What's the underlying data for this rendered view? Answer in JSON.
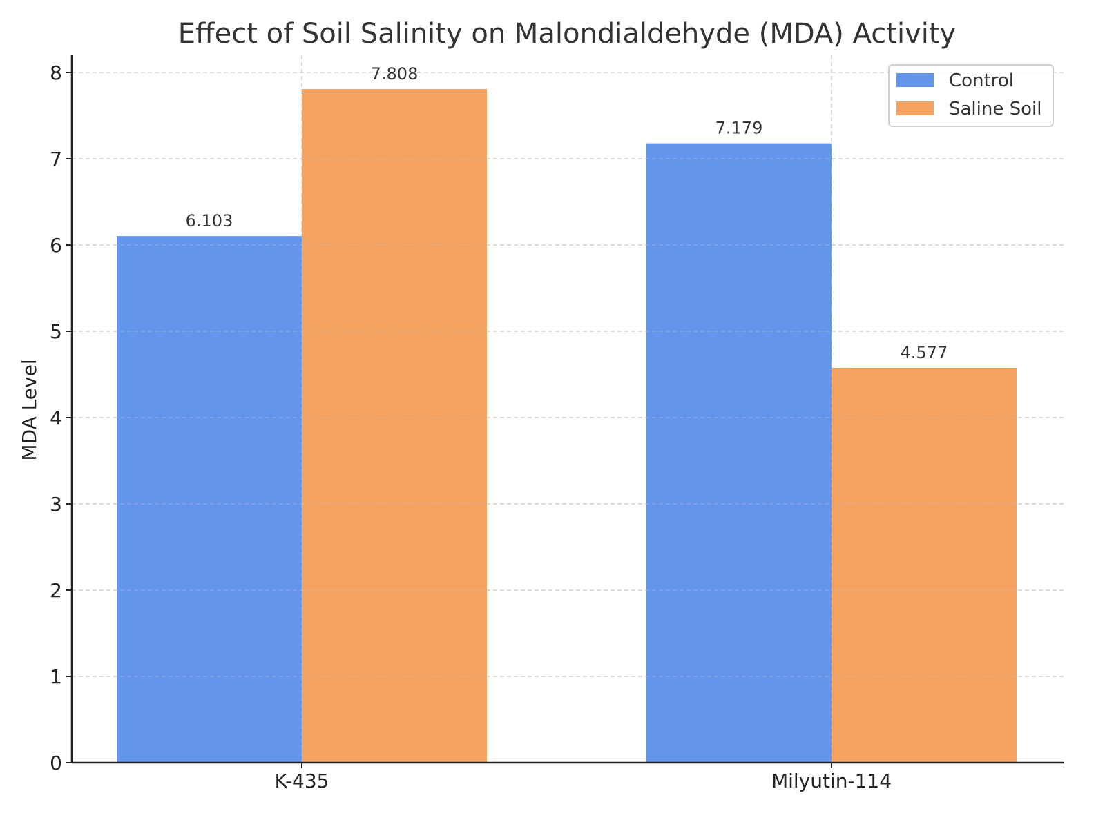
{
  "chart_data": {
    "type": "bar",
    "title": "Effect of Soil Salinity on Malondialdehyde (MDA) Activity",
    "xlabel": "",
    "ylabel": "MDA Level",
    "categories": [
      "K-435",
      "Milyutin-114"
    ],
    "series": [
      {
        "name": "Control",
        "color": "#6495ED",
        "values": [
          6.103,
          7.179
        ],
        "labels": [
          "6.103",
          "7.179"
        ]
      },
      {
        "name": "Saline Soil",
        "color": "#F4A460",
        "values": [
          7.808,
          4.577
        ],
        "labels": [
          "7.808",
          "4.577"
        ]
      }
    ],
    "ylim": [
      0,
      8.2
    ],
    "yticks": [
      0,
      1,
      2,
      3,
      4,
      5,
      6,
      7,
      8
    ],
    "grid": true,
    "legend": "top-right"
  }
}
